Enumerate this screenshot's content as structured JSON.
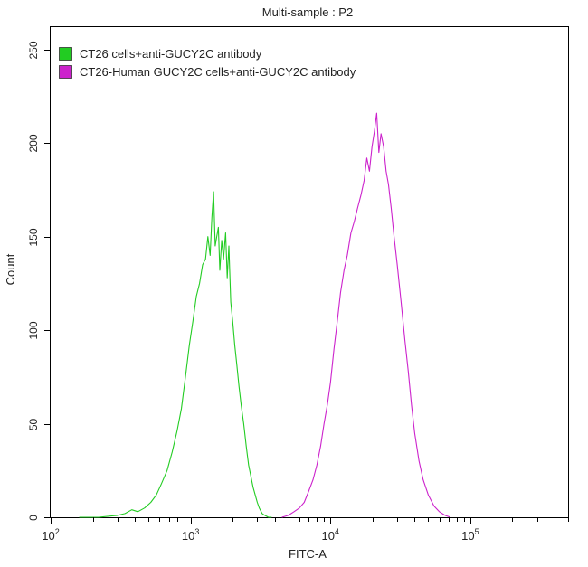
{
  "chart_data": {
    "type": "line",
    "title": "Multi-sample : P2",
    "xlabel": "FITC-A",
    "ylabel": "Count",
    "x_scale": "log",
    "xlim": [
      100,
      500000
    ],
    "ylim": [
      0,
      262
    ],
    "y_ticks": [
      0,
      50,
      100,
      150,
      200,
      250
    ],
    "x_ticks": [
      {
        "base": "10",
        "exp": "2",
        "value": 100
      },
      {
        "base": "10",
        "exp": "3",
        "value": 1000
      },
      {
        "base": "10",
        "exp": "4",
        "value": 10000
      },
      {
        "base": "10",
        "exp": "5",
        "value": 100000
      }
    ],
    "legend_position": "top-left",
    "series": [
      {
        "name": "CT26 cells+anti-GUCY2C antibody",
        "color": "#22cc22",
        "x": [
          160,
          220,
          300,
          340,
          380,
          420,
          470,
          520,
          570,
          620,
          680,
          740,
          800,
          860,
          920,
          980,
          1040,
          1100,
          1160,
          1220,
          1280,
          1330,
          1380,
          1420,
          1460,
          1500,
          1540,
          1580,
          1620,
          1670,
          1720,
          1780,
          1830,
          1880,
          1940,
          2000,
          2070,
          2140,
          2220,
          2300,
          2400,
          2500,
          2600,
          2700,
          2800,
          2900,
          3000,
          3100,
          3250,
          3400,
          3600,
          3800
        ],
        "y": [
          0,
          0,
          1,
          2,
          4,
          3,
          5,
          8,
          12,
          18,
          25,
          35,
          46,
          58,
          75,
          92,
          105,
          118,
          125,
          135,
          138,
          150,
          140,
          160,
          174,
          145,
          150,
          155,
          132,
          148,
          138,
          152,
          128,
          145,
          115,
          105,
          92,
          82,
          70,
          60,
          50,
          38,
          28,
          22,
          16,
          12,
          8,
          5,
          2,
          1,
          0,
          0
        ]
      },
      {
        "name": "CT26-Human GUCY2C cells+anti-GUCY2C antibody",
        "color": "#cc22cc",
        "x": [
          4500,
          5000,
          5500,
          6000,
          6500,
          7000,
          7500,
          8000,
          8500,
          9000,
          9500,
          10000,
          10600,
          11200,
          11800,
          12500,
          13200,
          14000,
          14800,
          15600,
          16500,
          17400,
          18200,
          19000,
          19800,
          20600,
          21400,
          22200,
          23000,
          24000,
          25000,
          26000,
          27200,
          28500,
          30000,
          32000,
          34000,
          36000,
          38000,
          40000,
          43000,
          46000,
          50000,
          55000,
          60000,
          66000,
          72000
        ],
        "y": [
          0,
          1,
          3,
          5,
          8,
          14,
          20,
          28,
          38,
          50,
          60,
          72,
          90,
          105,
          120,
          132,
          140,
          152,
          158,
          165,
          172,
          180,
          192,
          185,
          198,
          206,
          216,
          195,
          205,
          198,
          185,
          178,
          165,
          150,
          135,
          115,
          95,
          78,
          60,
          45,
          30,
          20,
          12,
          6,
          3,
          1,
          0
        ]
      }
    ]
  }
}
